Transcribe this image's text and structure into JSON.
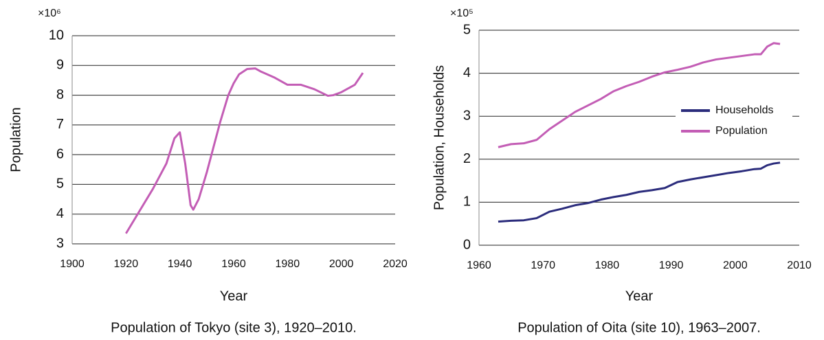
{
  "chart_data": [
    {
      "type": "line",
      "caption": "Population of  Tokyo (site 3), 1920–2010.",
      "xlabel": "Year",
      "ylabel": "Population",
      "y_multiplier": "×10⁶",
      "x": [
        1920,
        1925,
        1930,
        1935,
        1938,
        1940,
        1942,
        1944,
        1945,
        1947,
        1950,
        1955,
        1958,
        1960,
        1962,
        1965,
        1968,
        1970,
        1975,
        1980,
        1985,
        1990,
        1995,
        1997,
        2000,
        2005,
        2008
      ],
      "series": [
        {
          "color": "#c35db5",
          "values": [
            3.35,
            4.1,
            4.85,
            5.7,
            6.55,
            6.75,
            5.7,
            4.3,
            4.15,
            4.5,
            5.4,
            7.1,
            8.0,
            8.4,
            8.7,
            8.88,
            8.9,
            8.8,
            8.6,
            8.35,
            8.35,
            8.2,
            7.98,
            8.0,
            8.1,
            8.35,
            8.75
          ]
        }
      ],
      "xlim": [
        1900,
        2020
      ],
      "xticks": [
        1900,
        1920,
        1940,
        1960,
        1980,
        2000,
        2020
      ],
      "ylim": [
        3,
        10
      ],
      "yticks": [
        3,
        4,
        5,
        6,
        7,
        8,
        9,
        10
      ],
      "grid": true
    },
    {
      "type": "line",
      "caption": "Population of Oita (site 10), 1963–2007.",
      "xlabel": "Year",
      "ylabel": "Population, Households",
      "y_multiplier": "×10⁵",
      "x": [
        1963,
        1965,
        1967,
        1969,
        1971,
        1973,
        1975,
        1977,
        1979,
        1981,
        1983,
        1985,
        1987,
        1989,
        1991,
        1993,
        1995,
        1997,
        1999,
        2001,
        2003,
        2004,
        2005,
        2006,
        2007
      ],
      "series": [
        {
          "name": "Households",
          "color": "#2b2c7c",
          "values": [
            0.55,
            0.57,
            0.58,
            0.63,
            0.78,
            0.85,
            0.93,
            0.98,
            1.06,
            1.12,
            1.17,
            1.24,
            1.28,
            1.33,
            1.47,
            1.53,
            1.58,
            1.63,
            1.68,
            1.72,
            1.77,
            1.78,
            1.86,
            1.9,
            1.92
          ]
        },
        {
          "name": "Population",
          "color": "#c35db5",
          "values": [
            2.28,
            2.35,
            2.37,
            2.45,
            2.7,
            2.9,
            3.1,
            3.25,
            3.4,
            3.58,
            3.7,
            3.8,
            3.92,
            4.02,
            4.08,
            4.15,
            4.25,
            4.32,
            4.36,
            4.4,
            4.44,
            4.44,
            4.62,
            4.7,
            4.68
          ]
        }
      ],
      "xlim": [
        1960,
        2010
      ],
      "xticks": [
        1960,
        1970,
        1980,
        1990,
        2000,
        2010
      ],
      "ylim": [
        0,
        5
      ],
      "yticks": [
        0,
        1,
        2,
        3,
        4,
        5
      ],
      "grid": true,
      "legend": "center-right"
    }
  ]
}
